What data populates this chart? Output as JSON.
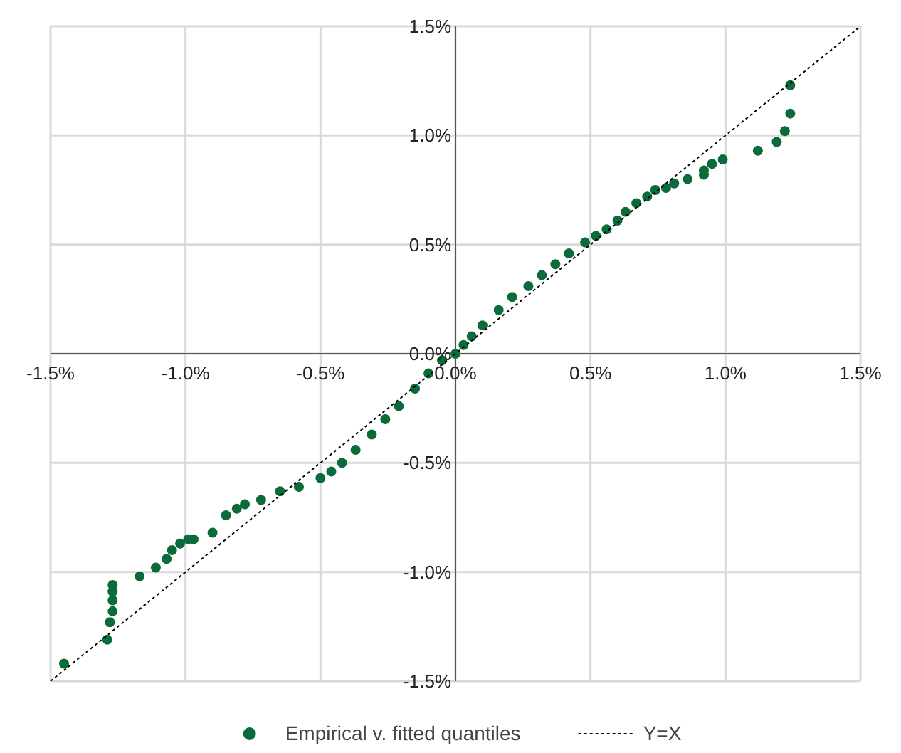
{
  "chart_data": {
    "type": "scatter",
    "xlim": [
      -1.5,
      1.5
    ],
    "ylim": [
      -1.5,
      1.5
    ],
    "xticks": [
      {
        "value": -1.5,
        "label": "-1.5%"
      },
      {
        "value": -1.0,
        "label": "-1.0%"
      },
      {
        "value": -0.5,
        "label": "-0.5%"
      },
      {
        "value": 0,
        "label": "0.0%"
      },
      {
        "value": 0.5,
        "label": "0.5%"
      },
      {
        "value": 1.0,
        "label": "1.0%"
      },
      {
        "value": 1.5,
        "label": "1.5%"
      }
    ],
    "yticks": [
      {
        "value": -1.5,
        "label": "-1.5%"
      },
      {
        "value": -1.0,
        "label": "-1.0%"
      },
      {
        "value": -0.5,
        "label": "-0.5%"
      },
      {
        "value": 0,
        "label": "0.0%"
      },
      {
        "value": 0.5,
        "label": "0.5%"
      },
      {
        "value": 1.0,
        "label": "1.0%"
      },
      {
        "value": 1.5,
        "label": "1.5%"
      }
    ],
    "grid": true,
    "legend": "bottom",
    "series": [
      {
        "name": "Empirical v. fitted quantiles",
        "marker": "circle",
        "color": "#0b6b3a",
        "x": [
          -1.45,
          -1.29,
          -1.28,
          -1.27,
          -1.27,
          -1.27,
          -1.27,
          -1.17,
          -1.11,
          -1.07,
          -1.05,
          -1.02,
          -0.99,
          -0.97,
          -0.9,
          -0.85,
          -0.81,
          -0.78,
          -0.72,
          -0.65,
          -0.58,
          -0.5,
          -0.46,
          -0.42,
          -0.37,
          -0.31,
          -0.26,
          -0.21,
          -0.15,
          -0.1,
          -0.05,
          0,
          0.03,
          0.06,
          0.1,
          0.16,
          0.21,
          0.27,
          0.32,
          0.37,
          0.42,
          0.48,
          0.52,
          0.56,
          0.6,
          0.63,
          0.67,
          0.71,
          0.74,
          0.78,
          0.81,
          0.86,
          0.92,
          0.92,
          0.95,
          0.99,
          1.12,
          1.19,
          1.22,
          1.24,
          1.24
        ],
        "values": [
          -1.42,
          -1.31,
          -1.23,
          -1.18,
          -1.13,
          -1.09,
          -1.06,
          -1.02,
          -0.98,
          -0.94,
          -0.9,
          -0.87,
          -0.85,
          -0.85,
          -0.82,
          -0.74,
          -0.71,
          -0.69,
          -0.67,
          -0.63,
          -0.61,
          -0.57,
          -0.54,
          -0.5,
          -0.44,
          -0.37,
          -0.3,
          -0.24,
          -0.16,
          -0.09,
          -0.03,
          0,
          0.04,
          0.08,
          0.13,
          0.2,
          0.26,
          0.31,
          0.36,
          0.41,
          0.46,
          0.51,
          0.54,
          0.57,
          0.61,
          0.65,
          0.69,
          0.72,
          0.75,
          0.76,
          0.78,
          0.8,
          0.82,
          0.84,
          0.87,
          0.89,
          0.93,
          0.97,
          1.02,
          1.1,
          1.23
        ]
      },
      {
        "name": "Y=X",
        "type": "line",
        "line_style": "dotted",
        "color": "#000000",
        "x": [
          -1.5,
          1.5
        ],
        "values": [
          -1.5,
          1.5
        ]
      }
    ]
  }
}
